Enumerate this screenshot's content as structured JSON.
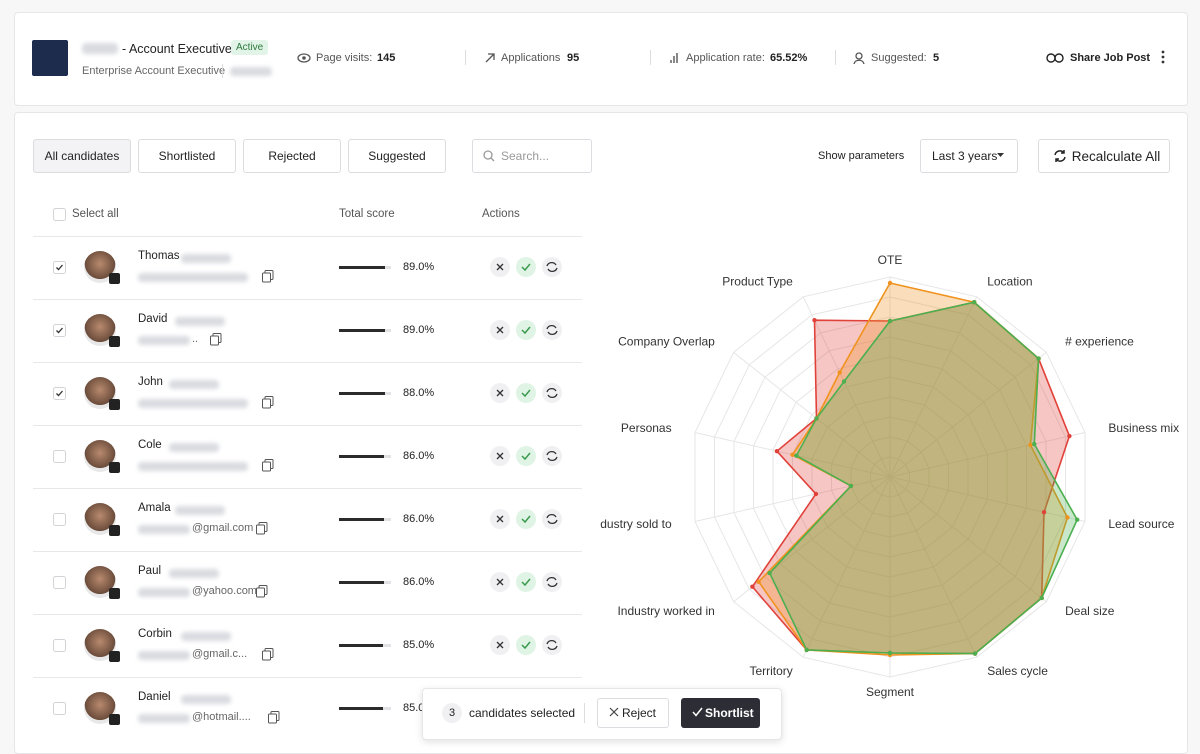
{
  "header": {
    "title": "- Account Executive",
    "badge": "Active",
    "subtitle": "Enterprise Account Executive",
    "stats": [
      {
        "label": "Page visits:",
        "value": "145"
      },
      {
        "label": "Applications",
        "value": "95"
      },
      {
        "label": "Application rate:",
        "value": "65.52%"
      },
      {
        "label": "Suggested:",
        "value": "5"
      }
    ],
    "share": "Share Job Post"
  },
  "toolbar": {
    "tabs": [
      "All candidates",
      "Shortlisted",
      "Rejected",
      "Suggested"
    ],
    "search_placeholder": "Search...",
    "show_parameters": "Show parameters",
    "period": "Last 3 years",
    "recalculate": "Recalculate All"
  },
  "table": {
    "select_all": "Select all",
    "columns": [
      "Total score",
      "Actions"
    ],
    "rows": [
      {
        "name": "Thomas",
        "email": "",
        "checked": true,
        "score": "89.0%"
      },
      {
        "name": "David",
        "email": "..",
        "checked": true,
        "score": "89.0%"
      },
      {
        "name": "John",
        "email": "",
        "checked": true,
        "score": "88.0%"
      },
      {
        "name": "Cole",
        "email": "",
        "checked": false,
        "score": "86.0%"
      },
      {
        "name": "Amala",
        "email": "@gmail.com",
        "checked": false,
        "score": "86.0%"
      },
      {
        "name": "Paul",
        "email": "@yahoo.com",
        "checked": false,
        "score": "86.0%"
      },
      {
        "name": "Corbin",
        "email": "@gmail.c...",
        "checked": false,
        "score": "85.0%"
      },
      {
        "name": "Daniel",
        "email": "@hotmail....",
        "checked": false,
        "score": "85.0"
      }
    ]
  },
  "selection_bar": {
    "count": "3",
    "text": "candidates selected",
    "reject": "Reject",
    "shortlist": "Shortlist"
  },
  "chart_data": {
    "type": "radar",
    "categories": [
      "OTE",
      "Location",
      "# experience",
      "Business mix",
      "Lead source",
      "Deal size",
      "Sales cycle",
      "Segment",
      "Territory",
      "Industry worked in",
      "Industry sold to",
      "Personas",
      "Company Overlap",
      "Product Type"
    ],
    "series": [
      {
        "color": "#e0423a",
        "values": [
          78,
          97,
          95,
          92,
          79,
          97,
          98,
          88,
          96,
          88,
          38,
          58,
          47,
          87
        ]
      },
      {
        "color": "#f0921e",
        "values": [
          97,
          97,
          95,
          72,
          91,
          97,
          98,
          89,
          96,
          84,
          20,
          50,
          47,
          58
        ]
      },
      {
        "color": "#4caf50",
        "values": [
          78,
          97,
          95,
          74,
          96,
          97,
          98,
          88,
          96,
          77,
          20,
          48,
          47,
          53
        ]
      }
    ],
    "ylim": [
      0,
      100
    ],
    "yticks": [
      10,
      20,
      30,
      40,
      50,
      60,
      70,
      80,
      90,
      100
    ],
    "grid": true
  }
}
